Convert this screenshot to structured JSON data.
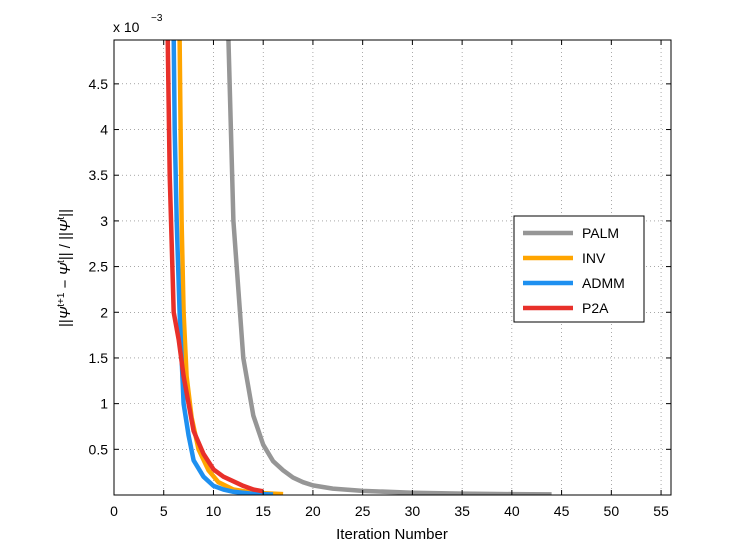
{
  "chart_data": {
    "type": "line",
    "xlabel": "Iteration Number",
    "ylabel_tex": "‖Ψ^{t+1} − Ψ^t‖ / ‖Ψ^t‖",
    "ylabel_parts": {
      "bar": "||",
      "psi": "Ψ",
      "sup1": "t+1",
      "minus": " − ",
      "sup2": "t",
      "slash": " / "
    },
    "y_multiplier": {
      "base": "x 10",
      "exp": "−3"
    },
    "xlim": [
      0,
      56
    ],
    "ylim": [
      0,
      4.98
    ],
    "xticks": [
      0,
      5,
      10,
      15,
      20,
      25,
      30,
      35,
      40,
      45,
      50,
      55
    ],
    "xtick_labels": [
      "0",
      "5",
      "10",
      "15",
      "20",
      "25",
      "30",
      "35",
      "40",
      "45",
      "50",
      "55"
    ],
    "yticks": [
      0.5,
      1,
      1.5,
      2,
      2.5,
      3,
      3.5,
      4,
      4.5
    ],
    "ytick_labels": [
      "0.5",
      "1",
      "1.5",
      "2",
      "2.5",
      "3",
      "3.5",
      "4",
      "4.5"
    ],
    "grid": true,
    "legend_position": "right-middle",
    "series": [
      {
        "name": "PALM",
        "color": "#969696",
        "points": [
          [
            11.5,
            5.0
          ],
          [
            12,
            3.0
          ],
          [
            13,
            1.5
          ],
          [
            14,
            0.87
          ],
          [
            15,
            0.55
          ],
          [
            16,
            0.37
          ],
          [
            17,
            0.27
          ],
          [
            18,
            0.19
          ],
          [
            19,
            0.14
          ],
          [
            20,
            0.105
          ],
          [
            22,
            0.07
          ],
          [
            25,
            0.045
          ],
          [
            30,
            0.025
          ],
          [
            35,
            0.015
          ],
          [
            40,
            0.01
          ],
          [
            44,
            0.007
          ]
        ]
      },
      {
        "name": "INV",
        "color": "#FFA500",
        "points": [
          [
            6.6,
            5.0
          ],
          [
            6.7,
            4.0
          ],
          [
            6.8,
            3.0
          ],
          [
            7,
            2.0
          ],
          [
            7.3,
            1.3
          ],
          [
            7.8,
            0.85
          ],
          [
            8.5,
            0.5
          ],
          [
            9.5,
            0.27
          ],
          [
            10.5,
            0.14
          ],
          [
            12,
            0.06
          ],
          [
            14,
            0.025
          ],
          [
            17,
            0.01
          ]
        ]
      },
      {
        "name": "ADMM",
        "color": "#1E90F0",
        "points": [
          [
            6.0,
            5.0
          ],
          [
            6.1,
            4.0
          ],
          [
            6.3,
            3.0
          ],
          [
            6.6,
            2.0
          ],
          [
            7,
            1.0
          ],
          [
            7.5,
            0.65
          ],
          [
            8,
            0.38
          ],
          [
            9,
            0.2
          ],
          [
            10,
            0.1
          ],
          [
            11,
            0.06
          ],
          [
            12,
            0.035
          ],
          [
            14,
            0.012
          ],
          [
            16,
            0.005
          ]
        ]
      },
      {
        "name": "P2A",
        "color": "#E8302A",
        "points": [
          [
            5.4,
            5.0
          ],
          [
            5.6,
            3.5
          ],
          [
            6,
            2.0
          ],
          [
            6.5,
            1.7
          ],
          [
            7,
            1.3
          ],
          [
            7.5,
            1.0
          ],
          [
            8,
            0.7
          ],
          [
            9,
            0.45
          ],
          [
            10,
            0.28
          ],
          [
            11,
            0.2
          ],
          [
            12,
            0.15
          ],
          [
            13,
            0.1
          ],
          [
            14,
            0.06
          ],
          [
            15,
            0.04
          ]
        ]
      }
    ]
  }
}
